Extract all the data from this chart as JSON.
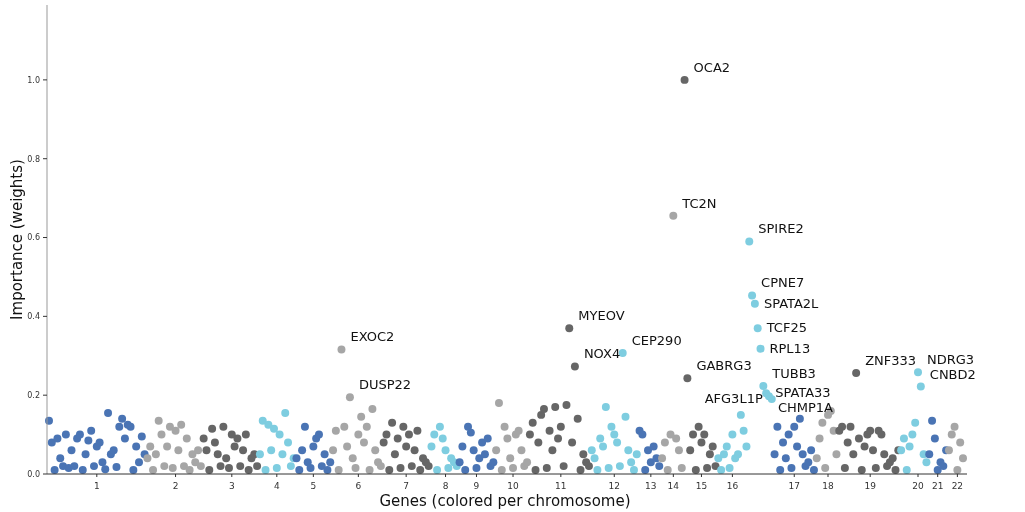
{
  "chart_data": {
    "type": "scatter",
    "xlabel": "Genes (colored per chromosome)",
    "ylabel": "Importance (weights)",
    "ylim": [
      0,
      1.19
    ],
    "yticks": [
      {
        "value": 0,
        "label": "0.0"
      },
      0.2,
      0.4,
      0.6,
      0.8,
      {
        "value": 1,
        "label": "1.0"
      }
    ],
    "marker": "circle",
    "categories": [
      null,
      null,
      null,
      null,
      null,
      null,
      null,
      null,
      null,
      null,
      null,
      null,
      null,
      null,
      null,
      null,
      null,
      "1",
      null,
      null,
      null,
      null,
      null,
      null,
      null,
      null,
      null,
      null,
      null,
      null,
      null,
      null,
      null,
      null,
      null,
      null,
      null,
      null,
      null,
      null,
      null,
      null,
      null,
      null,
      null,
      "2",
      null,
      null,
      null,
      null,
      null,
      null,
      null,
      null,
      null,
      null,
      null,
      null,
      null,
      null,
      null,
      null,
      null,
      null,
      null,
      "3",
      null,
      null,
      null,
      null,
      null,
      null,
      null,
      null,
      null,
      null,
      null,
      null,
      null,
      null,
      null,
      "4",
      null,
      null,
      null,
      null,
      null,
      null,
      null,
      null,
      null,
      null,
      null,
      null,
      "5",
      null,
      null,
      null,
      null,
      null,
      null,
      null,
      null,
      null,
      null,
      null,
      null,
      null,
      null,
      null,
      "6",
      null,
      null,
      null,
      null,
      null,
      null,
      null,
      null,
      null,
      null,
      null,
      null,
      null,
      null,
      null,
      null,
      "7",
      null,
      null,
      null,
      null,
      null,
      null,
      null,
      null,
      null,
      null,
      null,
      null,
      null,
      "8",
      null,
      null,
      null,
      null,
      null,
      null,
      null,
      null,
      null,
      null,
      "9",
      null,
      null,
      null,
      null,
      null,
      null,
      null,
      null,
      null,
      null,
      null,
      null,
      "10",
      null,
      null,
      null,
      null,
      null,
      null,
      null,
      null,
      null,
      null,
      null,
      null,
      null,
      null,
      null,
      null,
      "11",
      null,
      null,
      null,
      null,
      null,
      null,
      null,
      null,
      null,
      null,
      null,
      null,
      null,
      null,
      null,
      null,
      null,
      null,
      "12",
      null,
      null,
      null,
      null,
      null,
      null,
      null,
      null,
      null,
      null,
      null,
      null,
      "13",
      null,
      null,
      null,
      null,
      null,
      null,
      null,
      "14",
      null,
      null,
      null,
      null,
      null,
      null,
      null,
      null,
      null,
      "15",
      null,
      null,
      null,
      null,
      null,
      null,
      null,
      null,
      null,
      null,
      "16",
      null,
      null,
      null,
      null,
      null,
      null,
      null,
      null,
      null,
      null,
      null,
      null,
      null,
      null,
      null,
      null,
      null,
      null,
      null,
      null,
      null,
      "17",
      null,
      null,
      null,
      null,
      null,
      null,
      null,
      null,
      null,
      null,
      null,
      "18",
      null,
      null,
      null,
      null,
      null,
      null,
      null,
      null,
      null,
      null,
      null,
      null,
      null,
      null,
      "19",
      null,
      null,
      null,
      null,
      null,
      null,
      null,
      null,
      null,
      null,
      null,
      null,
      null,
      null,
      null,
      null,
      "20",
      null,
      null,
      null,
      null,
      null,
      null,
      "21",
      null,
      null,
      null,
      null,
      null,
      null,
      "22",
      null,
      null
    ],
    "values": [
      0.135,
      0.08,
      0.01,
      0.09,
      0.04,
      0.02,
      0.1,
      0.015,
      0.06,
      0.02,
      0.09,
      0.1,
      0.01,
      0.05,
      0.085,
      0.11,
      0.02,
      0.07,
      0.08,
      0.03,
      0.012,
      0.155,
      0.05,
      0.06,
      0.018,
      0.12,
      0.14,
      0.09,
      0.125,
      0.12,
      0.01,
      0.07,
      0.03,
      0.095,
      0.05,
      0.04,
      0.07,
      0.01,
      0.05,
      0.135,
      0.1,
      0.02,
      0.07,
      0.12,
      0.015,
      0.11,
      0.06,
      0.125,
      0.02,
      0.09,
      0.01,
      0.05,
      0.03,
      0.06,
      0.02,
      0.09,
      0.06,
      0.01,
      0.115,
      0.08,
      0.05,
      0.02,
      0.12,
      0.04,
      0.015,
      0.1,
      0.07,
      0.09,
      0.02,
      0.06,
      0.1,
      0.01,
      0.04,
      0.05,
      0.02,
      0.05,
      0.135,
      0.01,
      0.125,
      0.06,
      0.115,
      0.015,
      0.1,
      0.05,
      0.155,
      0.08,
      0.02,
      0.04,
      0.04,
      0.01,
      0.06,
      0.12,
      0.03,
      0.015,
      0.07,
      0.09,
      0.1,
      0.02,
      0.05,
      0.01,
      0.03,
      0.06,
      0.11,
      0.01,
      0.316,
      0.12,
      0.07,
      0.195,
      0.04,
      0.015,
      0.1,
      0.145,
      0.08,
      0.12,
      0.01,
      0.165,
      0.06,
      0.03,
      0.02,
      0.08,
      0.1,
      0.01,
      0.13,
      0.05,
      0.09,
      0.015,
      0.12,
      0.07,
      0.1,
      0.02,
      0.06,
      0.11,
      0.01,
      0.04,
      0.03,
      0.02,
      0.07,
      0.1,
      0.01,
      0.12,
      0.09,
      0.06,
      0.015,
      0.04,
      0.03,
      0.02,
      0.03,
      0.07,
      0.01,
      0.12,
      0.105,
      0.06,
      0.015,
      0.04,
      0.08,
      0.05,
      0.09,
      0.02,
      0.03,
      0.06,
      0.18,
      0.01,
      0.12,
      0.09,
      0.04,
      0.015,
      0.1,
      0.11,
      0.06,
      0.02,
      0.03,
      0.1,
      0.13,
      0.01,
      0.08,
      0.15,
      0.165,
      0.015,
      0.11,
      0.06,
      0.17,
      0.09,
      0.12,
      0.02,
      0.175,
      0.37,
      0.08,
      0.273,
      0.14,
      0.01,
      0.05,
      0.03,
      0.02,
      0.06,
      0.04,
      0.01,
      0.09,
      0.07,
      0.17,
      0.015,
      0.12,
      0.1,
      0.08,
      0.02,
      0.307,
      0.145,
      0.06,
      0.03,
      0.01,
      0.05,
      0.11,
      0.1,
      0.01,
      0.06,
      0.03,
      0.07,
      0.04,
      0.02,
      0.04,
      0.08,
      0.01,
      0.1,
      0.655,
      0.09,
      0.06,
      0.015,
      1.0,
      0.243,
      0.06,
      0.1,
      0.01,
      0.12,
      0.08,
      0.1,
      0.015,
      0.05,
      0.07,
      0.02,
      0.04,
      0.01,
      0.05,
      0.07,
      0.015,
      0.1,
      0.04,
      0.05,
      0.15,
      0.11,
      0.07,
      0.59,
      0.453,
      0.432,
      0.37,
      0.318,
      0.223,
      0.205,
      0.197,
      0.19,
      0.05,
      0.12,
      0.01,
      0.08,
      0.04,
      0.1,
      0.015,
      0.12,
      0.07,
      0.14,
      0.05,
      0.02,
      0.03,
      0.06,
      0.01,
      0.04,
      0.09,
      0.13,
      0.015,
      0.15,
      0.16,
      0.11,
      0.05,
      0.11,
      0.12,
      0.015,
      0.08,
      0.12,
      0.05,
      0.256,
      0.09,
      0.01,
      0.07,
      0.1,
      0.11,
      0.06,
      0.015,
      0.11,
      0.1,
      0.05,
      0.02,
      0.03,
      0.04,
      0.01,
      0.06,
      0.06,
      0.09,
      0.01,
      0.07,
      0.1,
      0.13,
      0.258,
      0.222,
      0.05,
      0.03,
      0.05,
      0.135,
      0.09,
      0.01,
      0.03,
      0.02,
      0.06,
      0.06,
      0.1,
      0.12,
      0.01,
      0.08,
      0.04
    ],
    "colors": [
      "#4a74b4",
      "#4a74b4",
      "#4a74b4",
      "#4a74b4",
      "#4a74b4",
      "#4a74b4",
      "#4a74b4",
      "#4a74b4",
      "#4a74b4",
      "#4a74b4",
      "#4a74b4",
      "#4a74b4",
      "#4a74b4",
      "#4a74b4",
      "#4a74b4",
      "#4a74b4",
      "#4a74b4",
      "#4a74b4",
      "#4a74b4",
      "#4a74b4",
      "#4a74b4",
      "#4a74b4",
      "#4a74b4",
      "#4a74b4",
      "#4a74b4",
      "#4a74b4",
      "#4a74b4",
      "#4a74b4",
      "#4a74b4",
      "#4a74b4",
      "#4a74b4",
      "#4a74b4",
      "#4a74b4",
      "#4a74b4",
      "#4a74b4",
      "#a6a6a6",
      "#a6a6a6",
      "#a6a6a6",
      "#a6a6a6",
      "#a6a6a6",
      "#a6a6a6",
      "#a6a6a6",
      "#a6a6a6",
      "#a6a6a6",
      "#a6a6a6",
      "#a6a6a6",
      "#a6a6a6",
      "#a6a6a6",
      "#a6a6a6",
      "#a6a6a6",
      "#a6a6a6",
      "#a6a6a6",
      "#a6a6a6",
      "#a6a6a6",
      "#a6a6a6",
      "#666666",
      "#666666",
      "#666666",
      "#666666",
      "#666666",
      "#666666",
      "#666666",
      "#666666",
      "#666666",
      "#666666",
      "#666666",
      "#666666",
      "#666666",
      "#666666",
      "#666666",
      "#666666",
      "#666666",
      "#666666",
      "#666666",
      "#666666",
      "#7ecde0",
      "#7ecde0",
      "#7ecde0",
      "#7ecde0",
      "#7ecde0",
      "#7ecde0",
      "#7ecde0",
      "#7ecde0",
      "#7ecde0",
      "#7ecde0",
      "#7ecde0",
      "#7ecde0",
      "#7ecde0",
      "#4a74b4",
      "#4a74b4",
      "#4a74b4",
      "#4a74b4",
      "#4a74b4",
      "#4a74b4",
      "#4a74b4",
      "#4a74b4",
      "#4a74b4",
      "#4a74b4",
      "#4a74b4",
      "#4a74b4",
      "#4a74b4",
      "#a6a6a6",
      "#a6a6a6",
      "#a6a6a6",
      "#a6a6a6",
      "#a6a6a6",
      "#a6a6a6",
      "#a6a6a6",
      "#a6a6a6",
      "#a6a6a6",
      "#a6a6a6",
      "#a6a6a6",
      "#a6a6a6",
      "#a6a6a6",
      "#a6a6a6",
      "#a6a6a6",
      "#a6a6a6",
      "#a6a6a6",
      "#a6a6a6",
      "#666666",
      "#666666",
      "#666666",
      "#666666",
      "#666666",
      "#666666",
      "#666666",
      "#666666",
      "#666666",
      "#666666",
      "#666666",
      "#666666",
      "#666666",
      "#666666",
      "#666666",
      "#666666",
      "#666666",
      "#7ecde0",
      "#7ecde0",
      "#7ecde0",
      "#7ecde0",
      "#7ecde0",
      "#7ecde0",
      "#7ecde0",
      "#7ecde0",
      "#7ecde0",
      "#7ecde0",
      "#4a74b4",
      "#4a74b4",
      "#4a74b4",
      "#4a74b4",
      "#4a74b4",
      "#4a74b4",
      "#4a74b4",
      "#4a74b4",
      "#4a74b4",
      "#4a74b4",
      "#4a74b4",
      "#4a74b4",
      "#4a74b4",
      "#a6a6a6",
      "#a6a6a6",
      "#a6a6a6",
      "#a6a6a6",
      "#a6a6a6",
      "#a6a6a6",
      "#a6a6a6",
      "#a6a6a6",
      "#a6a6a6",
      "#a6a6a6",
      "#a6a6a6",
      "#a6a6a6",
      "#666666",
      "#666666",
      "#666666",
      "#666666",
      "#666666",
      "#666666",
      "#666666",
      "#666666",
      "#666666",
      "#666666",
      "#666666",
      "#666666",
      "#666666",
      "#666666",
      "#666666",
      "#666666",
      "#666666",
      "#666666",
      "#666666",
      "#666666",
      "#666666",
      "#666666",
      "#7ecde0",
      "#7ecde0",
      "#7ecde0",
      "#7ecde0",
      "#7ecde0",
      "#7ecde0",
      "#7ecde0",
      "#7ecde0",
      "#7ecde0",
      "#7ecde0",
      "#7ecde0",
      "#7ecde0",
      "#7ecde0",
      "#7ecde0",
      "#7ecde0",
      "#7ecde0",
      "#7ecde0",
      "#4a74b4",
      "#4a74b4",
      "#4a74b4",
      "#4a74b4",
      "#4a74b4",
      "#4a74b4",
      "#4a74b4",
      "#4a74b4",
      "#a6a6a6",
      "#a6a6a6",
      "#a6a6a6",
      "#a6a6a6",
      "#a6a6a6",
      "#a6a6a6",
      "#a6a6a6",
      "#a6a6a6",
      "#666666",
      "#666666",
      "#666666",
      "#666666",
      "#666666",
      "#666666",
      "#666666",
      "#666666",
      "#666666",
      "#666666",
      "#666666",
      "#666666",
      "#7ecde0",
      "#7ecde0",
      "#7ecde0",
      "#7ecde0",
      "#7ecde0",
      "#7ecde0",
      "#7ecde0",
      "#7ecde0",
      "#7ecde0",
      "#7ecde0",
      "#7ecde0",
      "#7ecde0",
      "#7ecde0",
      "#7ecde0",
      "#7ecde0",
      "#7ecde0",
      "#7ecde0",
      "#7ecde0",
      "#7ecde0",
      "#7ecde0",
      "#4a74b4",
      "#4a74b4",
      "#4a74b4",
      "#4a74b4",
      "#4a74b4",
      "#4a74b4",
      "#4a74b4",
      "#4a74b4",
      "#4a74b4",
      "#4a74b4",
      "#4a74b4",
      "#4a74b4",
      "#4a74b4",
      "#4a74b4",
      "#4a74b4",
      "#a6a6a6",
      "#a6a6a6",
      "#a6a6a6",
      "#a6a6a6",
      "#a6a6a6",
      "#a6a6a6",
      "#a6a6a6",
      "#a6a6a6",
      "#666666",
      "#666666",
      "#666666",
      "#666666",
      "#666666",
      "#666666",
      "#666666",
      "#666666",
      "#666666",
      "#666666",
      "#666666",
      "#666666",
      "#666666",
      "#666666",
      "#666666",
      "#666666",
      "#666666",
      "#666666",
      "#666666",
      "#666666",
      "#666666",
      "#666666",
      "#7ecde0",
      "#7ecde0",
      "#7ecde0",
      "#7ecde0",
      "#7ecde0",
      "#7ecde0",
      "#7ecde0",
      "#7ecde0",
      "#7ecde0",
      "#7ecde0",
      "#4a74b4",
      "#4a74b4",
      "#4a74b4",
      "#4a74b4",
      "#4a74b4",
      "#4a74b4",
      "#4a74b4",
      "#a6a6a6",
      "#a6a6a6",
      "#a6a6a6",
      "#a6a6a6",
      "#a6a6a6",
      "#a6a6a6"
    ],
    "value_labels": [
      null,
      null,
      null,
      null,
      null,
      null,
      null,
      null,
      null,
      null,
      null,
      null,
      null,
      null,
      null,
      null,
      null,
      null,
      null,
      null,
      null,
      null,
      null,
      null,
      null,
      null,
      null,
      null,
      null,
      null,
      null,
      null,
      null,
      null,
      null,
      null,
      null,
      null,
      null,
      null,
      null,
      null,
      null,
      null,
      null,
      null,
      null,
      null,
      null,
      null,
      null,
      null,
      null,
      null,
      null,
      null,
      null,
      null,
      null,
      null,
      null,
      null,
      null,
      null,
      null,
      null,
      null,
      null,
      null,
      null,
      null,
      null,
      null,
      null,
      null,
      null,
      null,
      null,
      null,
      null,
      null,
      null,
      null,
      null,
      null,
      null,
      null,
      null,
      null,
      null,
      null,
      null,
      null,
      null,
      null,
      null,
      null,
      null,
      null,
      null,
      null,
      null,
      null,
      null,
      "EXOC2",
      null,
      null,
      "DUSP22",
      null,
      null,
      null,
      null,
      null,
      null,
      null,
      null,
      null,
      null,
      null,
      null,
      null,
      null,
      null,
      null,
      null,
      null,
      null,
      null,
      null,
      null,
      null,
      null,
      null,
      null,
      null,
      null,
      null,
      null,
      null,
      null,
      null,
      null,
      null,
      null,
      null,
      null,
      null,
      null,
      null,
      null,
      null,
      null,
      null,
      null,
      null,
      null,
      null,
      null,
      null,
      null,
      null,
      null,
      null,
      null,
      null,
      null,
      null,
      null,
      null,
      null,
      null,
      null,
      null,
      null,
      null,
      null,
      null,
      null,
      null,
      null,
      null,
      null,
      null,
      null,
      null,
      "MYEOV",
      null,
      "NOX4",
      null,
      null,
      null,
      null,
      null,
      null,
      null,
      null,
      null,
      null,
      null,
      null,
      null,
      null,
      null,
      null,
      "CEP290",
      null,
      null,
      null,
      null,
      null,
      null,
      null,
      null,
      null,
      null,
      null,
      null,
      null,
      null,
      null,
      null,
      null,
      "TC2N",
      null,
      null,
      null,
      "OCA2",
      "GABRG3",
      null,
      null,
      null,
      null,
      null,
      null,
      null,
      null,
      null,
      null,
      null,
      null,
      null,
      null,
      null,
      null,
      null,
      null,
      null,
      null,
      null,
      "SPIRE2",
      "CPNE7",
      "SPATA2L",
      "TCF25",
      "RPL13",
      "TUBB3",
      "SPATA33",
      "CHMP1A",
      "AFG3L1P",
      null,
      null,
      null,
      null,
      null,
      null,
      null,
      null,
      null,
      null,
      null,
      null,
      null,
      null,
      null,
      null,
      null,
      null,
      null,
      null,
      null,
      null,
      null,
      null,
      null,
      null,
      null,
      null,
      null,
      "ZNF333",
      null,
      null,
      null,
      null,
      null,
      null,
      null,
      null,
      null,
      null,
      null,
      null,
      null,
      null,
      null,
      null,
      null,
      null,
      null,
      null,
      null,
      "NDRG3",
      "CNBD2",
      null,
      null,
      null,
      null,
      null,
      null,
      null,
      null,
      null,
      null,
      null,
      null,
      null,
      null,
      null
    ]
  }
}
